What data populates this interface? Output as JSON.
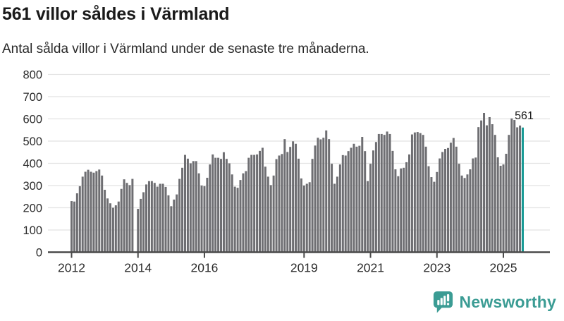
{
  "header": {
    "title": "561 villor såldes i Värmland",
    "subtitle": "Antal sålda villor i Värmland under de senaste tre månaderna."
  },
  "footer": {
    "brand": "Newsworthy",
    "brand_color": "#3b9c94",
    "logo_icon": "newsworthy-bar-chart-bubble-icon"
  },
  "chart_data": {
    "type": "bar",
    "title": "561 villor såldes i Värmland",
    "subtitle": "Antal sålda villor i Värmland under de senaste tre månaderna.",
    "xlabel": "",
    "ylabel": "",
    "x_frequency": "monthly",
    "x_start": "2012-01",
    "x_end": "2025-08",
    "missing_months": [
      "2013-12"
    ],
    "values": [
      230,
      228,
      265,
      297,
      340,
      362,
      371,
      362,
      358,
      365,
      372,
      345,
      281,
      242,
      220,
      200,
      211,
      228,
      285,
      328,
      312,
      302,
      330,
      null,
      195,
      240,
      270,
      305,
      320,
      320,
      312,
      295,
      308,
      308,
      294,
      256,
      207,
      237,
      260,
      330,
      380,
      438,
      421,
      400,
      410,
      410,
      355,
      300,
      297,
      335,
      395,
      440,
      425,
      425,
      420,
      450,
      420,
      400,
      350,
      295,
      290,
      325,
      355,
      365,
      425,
      438,
      438,
      440,
      456,
      470,
      385,
      340,
      302,
      345,
      419,
      435,
      442,
      509,
      451,
      474,
      499,
      488,
      421,
      332,
      300,
      308,
      315,
      420,
      480,
      515,
      508,
      515,
      548,
      509,
      398,
      308,
      340,
      395,
      437,
      435,
      455,
      470,
      488,
      475,
      479,
      519,
      455,
      320,
      398,
      458,
      496,
      532,
      532,
      528,
      543,
      532,
      456,
      373,
      342,
      377,
      380,
      405,
      440,
      530,
      539,
      541,
      536,
      528,
      475,
      387,
      338,
      317,
      361,
      422,
      451,
      465,
      469,
      493,
      514,
      475,
      398,
      345,
      334,
      350,
      373,
      422,
      426,
      563,
      593,
      627,
      571,
      608,
      576,
      528,
      427,
      389,
      395,
      443,
      528,
      602,
      595,
      562,
      570,
      561
    ],
    "highlight": {
      "index": 163,
      "month": "2025-08",
      "value": 561,
      "label": "561",
      "color": "#189a95"
    },
    "bar_color": "#6e6e72",
    "ylim": [
      0,
      800
    ],
    "y_ticks": [
      0,
      100,
      200,
      300,
      400,
      500,
      600,
      700,
      800
    ],
    "x_tick_years": [
      2012,
      2014,
      2016,
      2019,
      2021,
      2023,
      2025
    ],
    "grid": "horizontal",
    "gridline_color": "#e2e2e2",
    "axis_color": "#4a4a4a",
    "tick_label_color": "#2b2b2b",
    "annotation_color": "#1a1a1a",
    "legend": "none"
  }
}
